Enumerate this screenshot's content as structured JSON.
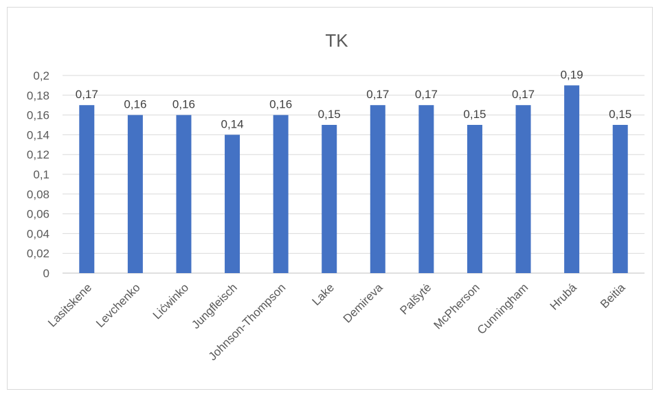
{
  "chart_data": {
    "type": "bar",
    "title": "TK",
    "categories": [
      "Lasitskene",
      "Levchenko",
      "Lićwinko",
      "Jungfleisch",
      "Johnson-Thompson",
      "Lake",
      "Demireva",
      "Palšytė",
      "McPherson",
      "Cunningham",
      "Hrubá",
      "Beitia"
    ],
    "values": [
      0.17,
      0.16,
      0.16,
      0.14,
      0.16,
      0.15,
      0.17,
      0.17,
      0.15,
      0.17,
      0.19,
      0.15
    ],
    "data_labels": [
      "0,17",
      "0,16",
      "0,16",
      "0,14",
      "0,16",
      "0,15",
      "0,17",
      "0,17",
      "0,15",
      "0,17",
      "0,19",
      "0,15"
    ],
    "yticks": [
      0,
      0.02,
      0.04,
      0.06,
      0.08,
      0.1,
      0.12,
      0.14,
      0.16,
      0.18,
      0.2
    ],
    "ytick_labels": [
      "0",
      "0,02",
      "0,04",
      "0,06",
      "0,08",
      "0,1",
      "0,12",
      "0,14",
      "0,16",
      "0,18",
      "0,2"
    ],
    "ylim": [
      0,
      0.2
    ],
    "grid": true,
    "legend": "none",
    "bar_color": "#4472C4"
  }
}
